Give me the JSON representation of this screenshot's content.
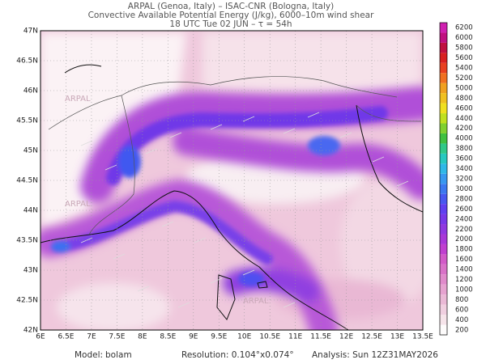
{
  "header": {
    "line1": "ARPAL (Genoa, Italy)  –  ISAC-CNR (Bologna, Italy)",
    "line2": "Convective Available Potential Energy (J/kg), 6000–10m wind shear",
    "line3": "18 UTC Tue 02 JUN  –  τ = 54h"
  },
  "map": {
    "watermark": "ARPAL",
    "lon_labels": [
      "6E",
      "6.5E",
      "7E",
      "7.5E",
      "8E",
      "8.5E",
      "9E",
      "9.5E",
      "10E",
      "10.5E",
      "11E",
      "11.5E",
      "12E",
      "12.5E",
      "13E",
      "13.5E"
    ],
    "lat_labels": [
      "42N",
      "42.5N",
      "43N",
      "43.5N",
      "44N",
      "44.5N",
      "45N",
      "45.5N",
      "46N",
      "46.5N",
      "47N"
    ]
  },
  "colorbar": {
    "levels": [
      200,
      400,
      600,
      800,
      1000,
      1200,
      1400,
      1600,
      1800,
      2000,
      2200,
      2400,
      2600,
      2800,
      3000,
      3200,
      3400,
      3600,
      3800,
      4000,
      4200,
      4400,
      4600,
      4800,
      5000,
      5200,
      5400,
      5600,
      5800,
      6000,
      6200
    ],
    "colors": [
      "#fdfbfb",
      "#f6e4ea",
      "#f0cfe0",
      "#eab9d6",
      "#e6a3d0",
      "#e08bcb",
      "#d972c8",
      "#d25ac8",
      "#c040d0",
      "#a838d8",
      "#9038e0",
      "#7838e8",
      "#6040f0",
      "#4858f0",
      "#3c78f0",
      "#3898f0",
      "#30b8e8",
      "#28c8c0",
      "#30c888",
      "#40c040",
      "#80d030",
      "#c0e020",
      "#f0e020",
      "#f0c020",
      "#f0a020",
      "#f07020",
      "#e84020",
      "#d82020",
      "#c01040",
      "#c01080",
      "#d020b0"
    ]
  },
  "footer": {
    "model_label": "Model:",
    "model": "bolam",
    "resolution": "Resolution: 0.104°x0.074°",
    "analysis": "Analysis: Sun 12Z31MAY2026"
  }
}
